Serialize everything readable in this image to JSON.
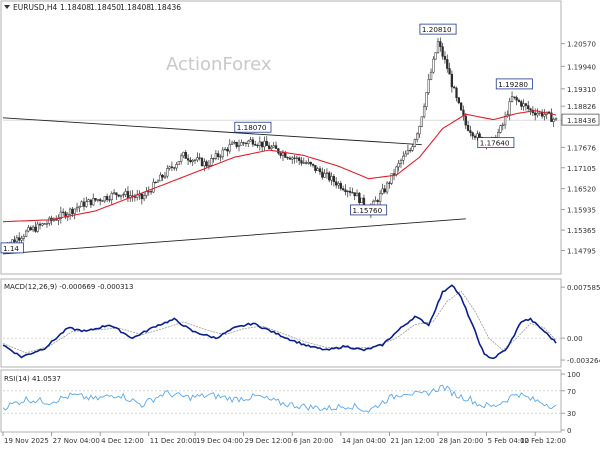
{
  "header": {
    "symbol": "EURUSD,H4",
    "ohlc": [
      "1.18408",
      "1.18450",
      "1.18408",
      "1.18436"
    ]
  },
  "watermark": "ActionForex",
  "colors": {
    "candle": "#2b2b2b",
    "ma": "#e0202e",
    "macd": "#0b1f8a",
    "signal": "#9a9a9a",
    "rsi": "#5aa8e6",
    "trendline": "#222222",
    "label_border": "#1f3a8a",
    "grid": "#c8c8c8"
  },
  "chart_data": [
    {
      "type": "candlestick",
      "title": "EURUSD,H4",
      "ylim": [
        1.1425,
        1.214
      ],
      "ytick_labels": [
        "1.20570",
        "1.19940",
        "1.19310",
        "1.18826",
        "1.18436",
        "1.17676",
        "1.17105",
        "1.16520",
        "1.15935",
        "1.15365",
        "1.14795"
      ],
      "yticks": [
        1.2057,
        1.1994,
        1.1931,
        1.18826,
        1.18436,
        1.17676,
        1.17105,
        1.1652,
        1.15935,
        1.15365,
        1.14795
      ],
      "xtick_labels": [
        "19 Nov 2025",
        "27 Nov 04:00",
        "4 Dec 12:00",
        "11 Dec 20:00",
        "19 Dec 04:00",
        "29 Dec 12:00",
        "6 Jan 20:00",
        "14 Jan 04:00",
        "21 Jan 12:00",
        "28 Jan 20:00",
        "5 Feb 04:00",
        "12 Feb 12:00"
      ],
      "n_bars": 240,
      "price_path": [
        [
          0,
          1.149
        ],
        [
          10,
          1.153
        ],
        [
          20,
          1.156
        ],
        [
          35,
          1.161
        ],
        [
          50,
          1.164
        ],
        [
          60,
          1.1625
        ],
        [
          68,
          1.168
        ],
        [
          78,
          1.1745
        ],
        [
          88,
          1.172
        ],
        [
          98,
          1.177
        ],
        [
          108,
          1.1787
        ],
        [
          118,
          1.176
        ],
        [
          132,
          1.172
        ],
        [
          145,
          1.1665
        ],
        [
          152,
          1.164
        ],
        [
          158,
          1.159
        ],
        [
          165,
          1.165
        ],
        [
          172,
          1.173
        ],
        [
          176,
          1.176
        ],
        [
          180,
          1.183
        ],
        [
          184,
          1.195
        ],
        [
          188,
          1.206
        ],
        [
          192,
          1.199
        ],
        [
          196,
          1.19
        ],
        [
          200,
          1.183
        ],
        [
          206,
          1.179
        ],
        [
          212,
          1.1785
        ],
        [
          216,
          1.183
        ],
        [
          220,
          1.1905
        ],
        [
          224,
          1.189
        ],
        [
          228,
          1.187
        ],
        [
          234,
          1.186
        ],
        [
          239,
          1.18436
        ]
      ],
      "ma_path": [
        [
          0,
          1.156
        ],
        [
          20,
          1.1565
        ],
        [
          40,
          1.159
        ],
        [
          60,
          1.164
        ],
        [
          80,
          1.169
        ],
        [
          100,
          1.174
        ],
        [
          115,
          1.176
        ],
        [
          130,
          1.1745
        ],
        [
          145,
          1.1715
        ],
        [
          158,
          1.168
        ],
        [
          170,
          1.169
        ],
        [
          180,
          1.174
        ],
        [
          190,
          1.182
        ],
        [
          200,
          1.186
        ],
        [
          212,
          1.1845
        ],
        [
          222,
          1.1862
        ],
        [
          230,
          1.187
        ],
        [
          239,
          1.1858
        ]
      ],
      "trendlines": [
        {
          "from": [
            0,
            1.185
          ],
          "to": [
            181,
            1.1775
          ]
        },
        {
          "from": [
            0,
            1.147
          ],
          "to": [
            200,
            1.1568
          ]
        }
      ],
      "annotations": [
        {
          "text": "1.20810",
          "x": 188,
          "y": 1.2081
        },
        {
          "text": "1.19280",
          "x": 221,
          "y": 1.1928
        },
        {
          "text": "1.18070",
          "x": 108,
          "y": 1.1807
        },
        {
          "text": "1.17640",
          "x": 213,
          "y": 1.1764
        },
        {
          "text": "1.15760",
          "x": 158,
          "y": 1.1576
        },
        {
          "text": "1.14",
          "x": 0,
          "y": 1.147
        }
      ],
      "last_price": 1.18436
    },
    {
      "type": "line",
      "title": "MACD(12,26,9) -0.000669 -0.000313",
      "ylim": [
        -0.004,
        0.0082
      ],
      "ytick_labels": [
        "0.007585",
        "0.00",
        "-0.003264"
      ],
      "yticks": [
        0.007585,
        0.0,
        -0.003264
      ],
      "series": [
        {
          "name": "MACD",
          "values_path": [
            [
              0,
              -0.001
            ],
            [
              8,
              -0.0028
            ],
            [
              18,
              -0.0015
            ],
            [
              28,
              0.0015
            ],
            [
              36,
              0.001
            ],
            [
              46,
              0.002
            ],
            [
              56,
              0.0
            ],
            [
              66,
              0.0018
            ],
            [
              74,
              0.0028
            ],
            [
              82,
              0.001
            ],
            [
              92,
              0.0
            ],
            [
              100,
              0.0015
            ],
            [
              108,
              0.0022
            ],
            [
              116,
              0.001
            ],
            [
              124,
              -0.0002
            ],
            [
              132,
              -0.0012
            ],
            [
              140,
              -0.0018
            ],
            [
              148,
              -0.0012
            ],
            [
              156,
              -0.0018
            ],
            [
              164,
              -0.001
            ],
            [
              172,
              0.0015
            ],
            [
              178,
              0.0032
            ],
            [
              184,
              0.002
            ],
            [
              190,
              0.0068
            ],
            [
              194,
              0.008
            ],
            [
              198,
              0.006
            ],
            [
              204,
              0.001
            ],
            [
              208,
              -0.0025
            ],
            [
              212,
              -0.003
            ],
            [
              218,
              -0.0015
            ],
            [
              224,
              0.0025
            ],
            [
              228,
              0.0028
            ],
            [
              234,
              0.001
            ],
            [
              239,
              -0.000669
            ]
          ]
        },
        {
          "name": "Signal",
          "values_path": [
            [
              0,
              -0.0008
            ],
            [
              10,
              -0.0022
            ],
            [
              20,
              -0.0012
            ],
            [
              30,
              0.001
            ],
            [
              40,
              0.0012
            ],
            [
              50,
              0.0015
            ],
            [
              60,
              0.0005
            ],
            [
              70,
              0.0015
            ],
            [
              78,
              0.0024
            ],
            [
              88,
              0.0012
            ],
            [
              96,
              0.0005
            ],
            [
              104,
              0.0014
            ],
            [
              112,
              0.0018
            ],
            [
              120,
              0.0008
            ],
            [
              130,
              -0.0005
            ],
            [
              140,
              -0.0014
            ],
            [
              150,
              -0.0014
            ],
            [
              160,
              -0.0014
            ],
            [
              170,
              0.0
            ],
            [
              178,
              0.002
            ],
            [
              186,
              0.0025
            ],
            [
              192,
              0.0055
            ],
            [
              198,
              0.007
            ],
            [
              204,
              0.004
            ],
            [
              210,
              0.0
            ],
            [
              216,
              -0.0018
            ],
            [
              222,
              0.0
            ],
            [
              228,
              0.0022
            ],
            [
              234,
              0.0015
            ],
            [
              239,
              -0.000313
            ]
          ]
        }
      ]
    },
    {
      "type": "line",
      "title": "RSI(14) 41.0537",
      "ylim": [
        0,
        100
      ],
      "ytick_labels": [
        "100",
        "70",
        "30",
        "0"
      ],
      "yticks": [
        100,
        70,
        30,
        0
      ],
      "series": [
        {
          "name": "RSI",
          "values_path": [
            [
              0,
              40
            ],
            [
              10,
              55
            ],
            [
              20,
              50
            ],
            [
              30,
              62
            ],
            [
              40,
              55
            ],
            [
              50,
              64
            ],
            [
              60,
              45
            ],
            [
              70,
              66
            ],
            [
              80,
              58
            ],
            [
              90,
              62
            ],
            [
              100,
              55
            ],
            [
              110,
              60
            ],
            [
              120,
              48
            ],
            [
              130,
              42
            ],
            [
              140,
              38
            ],
            [
              150,
              44
            ],
            [
              158,
              34
            ],
            [
              166,
              55
            ],
            [
              174,
              68
            ],
            [
              180,
              62
            ],
            [
              186,
              70
            ],
            [
              190,
              78
            ],
            [
              196,
              62
            ],
            [
              202,
              55
            ],
            [
              206,
              45
            ],
            [
              212,
              42
            ],
            [
              218,
              55
            ],
            [
              222,
              66
            ],
            [
              228,
              55
            ],
            [
              234,
              48
            ],
            [
              239,
              41.0537
            ]
          ]
        }
      ]
    }
  ]
}
